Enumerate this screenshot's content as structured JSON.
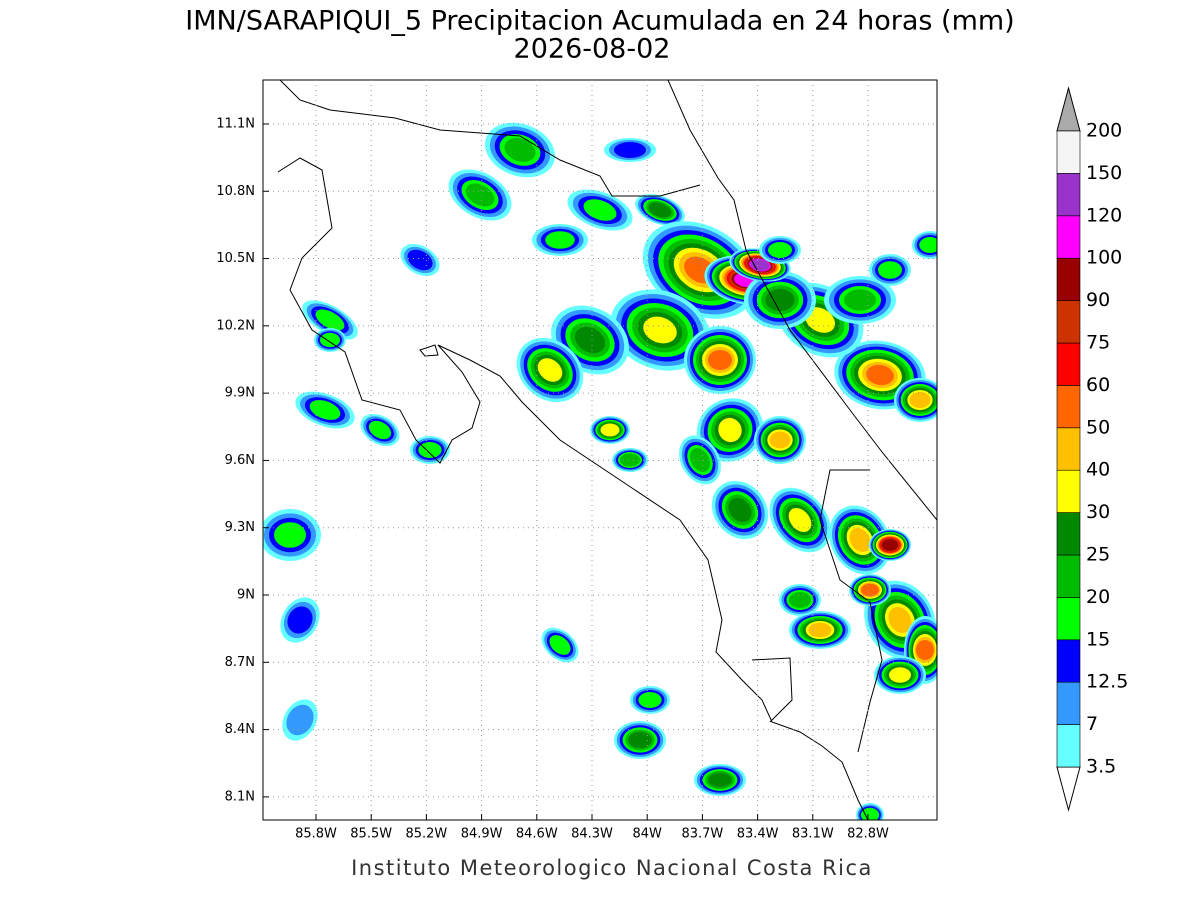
{
  "chart_data": {
    "type": "map",
    "title": "IMN/SARAPIQUI_5 Precipitacion Acumulada en 24 horas (mm)",
    "subtitle": "2026-08-02",
    "footer": "Instituto Meteorologico Nacional Costa Rica",
    "xlim": [
      -86.088,
      -82.425
    ],
    "ylim": [
      7.997,
      11.296
    ],
    "xticks": [
      {
        "value": -85.8,
        "label": "85.8W"
      },
      {
        "value": -85.5,
        "label": "85.5W"
      },
      {
        "value": -85.2,
        "label": "85.2W"
      },
      {
        "value": -84.9,
        "label": "84.9W"
      },
      {
        "value": -84.6,
        "label": "84.6W"
      },
      {
        "value": -84.3,
        "label": "84.3W"
      },
      {
        "value": -84.0,
        "label": "84W"
      },
      {
        "value": -83.7,
        "label": "83.7W"
      },
      {
        "value": -83.4,
        "label": "83.4W"
      },
      {
        "value": -83.1,
        "label": "83.1W"
      },
      {
        "value": -82.8,
        "label": "82.8W"
      }
    ],
    "yticks": [
      {
        "value": 8.1,
        "label": "8.1N"
      },
      {
        "value": 8.4,
        "label": "8.4N"
      },
      {
        "value": 8.7,
        "label": "8.7N"
      },
      {
        "value": 9.0,
        "label": "9N"
      },
      {
        "value": 9.3,
        "label": "9.3N"
      },
      {
        "value": 9.6,
        "label": "9.6N"
      },
      {
        "value": 9.9,
        "label": "9.9N"
      },
      {
        "value": 10.2,
        "label": "10.2N"
      },
      {
        "value": 10.5,
        "label": "10.5N"
      },
      {
        "value": 10.8,
        "label": "10.8N"
      },
      {
        "value": 11.1,
        "label": "11.1N"
      }
    ],
    "grid": true,
    "colorbar": {
      "levels": [
        3.5,
        7,
        12.5,
        15,
        20,
        25,
        30,
        40,
        50,
        60,
        75,
        90,
        100,
        120,
        150,
        200
      ],
      "colors": [
        "#66ffff",
        "#3399ff",
        "#0000ff",
        "#00ff00",
        "#00bb00",
        "#008800",
        "#ffff00",
        "#ffc000",
        "#ff6600",
        "#ff0000",
        "#cc3300",
        "#990000",
        "#ff00ff",
        "#9933cc",
        "#f5f5f5"
      ],
      "under_color": "#ffffff",
      "over_color": "#aaaaaa"
    }
  }
}
